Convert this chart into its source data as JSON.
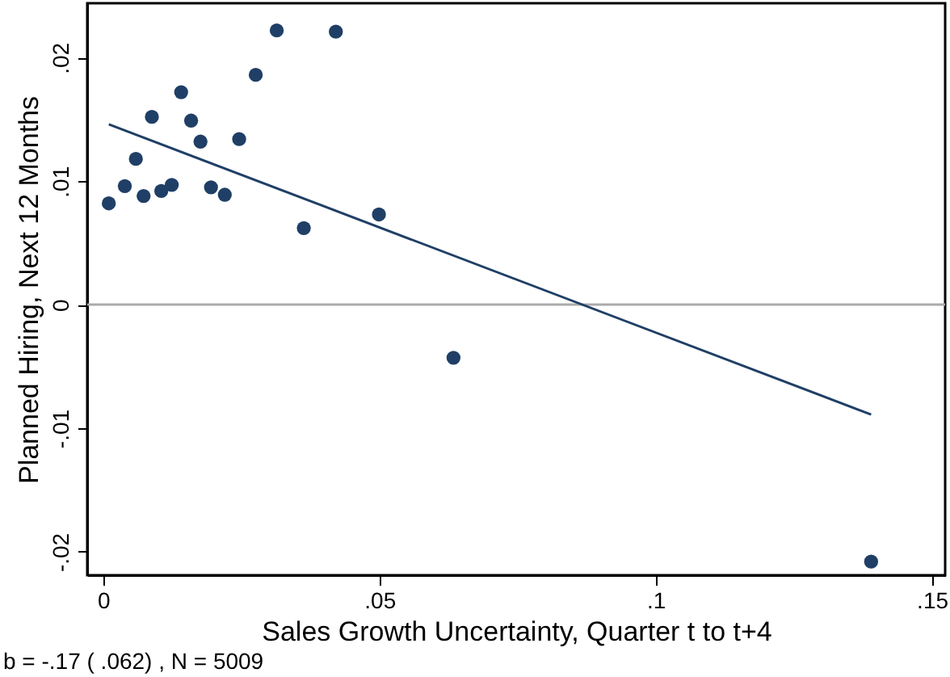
{
  "chart_data": {
    "type": "scatter",
    "xlabel": "Sales Growth Uncertainty, Quarter t to t+4",
    "ylabel": "Planned Hiring, Next 12 Months",
    "xlim": [
      -0.0029,
      0.1524
    ],
    "xticks": [
      {
        "value": 0,
        "label": "0"
      },
      {
        "value": 0.05,
        "label": ".05"
      },
      {
        "value": 0.1,
        "label": ".1"
      },
      {
        "value": 0.15,
        "label": ".15"
      }
    ],
    "ylim": [
      -0.0219,
      0.0244
    ],
    "yticks": [
      {
        "value": -0.02,
        "label": "-.02"
      },
      {
        "value": -0.01,
        "label": "-.01"
      },
      {
        "value": 0,
        "label": "0"
      },
      {
        "value": 0.01,
        "label": ".01"
      },
      {
        "value": 0.02,
        "label": ".02"
      }
    ],
    "grid": false,
    "series": [
      {
        "marker": "circle",
        "color": "#1f3f66",
        "x": [
          0.001,
          0.0039,
          0.0059,
          0.0073,
          0.0088,
          0.0105,
          0.0124,
          0.0141,
          0.0159,
          0.0176,
          0.0195,
          0.022,
          0.0246,
          0.0276,
          0.0314,
          0.0421,
          0.0363,
          0.0499,
          0.0634,
          0.139
        ],
        "values": [
          0.0082,
          0.0096,
          0.0118,
          0.0088,
          0.0152,
          0.0092,
          0.0097,
          0.0172,
          0.0149,
          0.0132,
          0.0095,
          0.0089,
          0.0134,
          0.0186,
          0.0222,
          0.0221,
          0.0062,
          0.0073,
          -0.0043,
          -0.0208
        ]
      },
      {
        "type": "line",
        "line_style": "solid",
        "color": "#1f3f66",
        "x": [
          0.001,
          0.139
        ],
        "values": [
          0.0146,
          -0.0089
        ]
      }
    ],
    "ref_lines": [
      {
        "axis": "y",
        "value": 0,
        "color": "#aaaaaa"
      }
    ],
    "annotations": [
      "b = -.17 ( .062) , N = 5009"
    ]
  }
}
